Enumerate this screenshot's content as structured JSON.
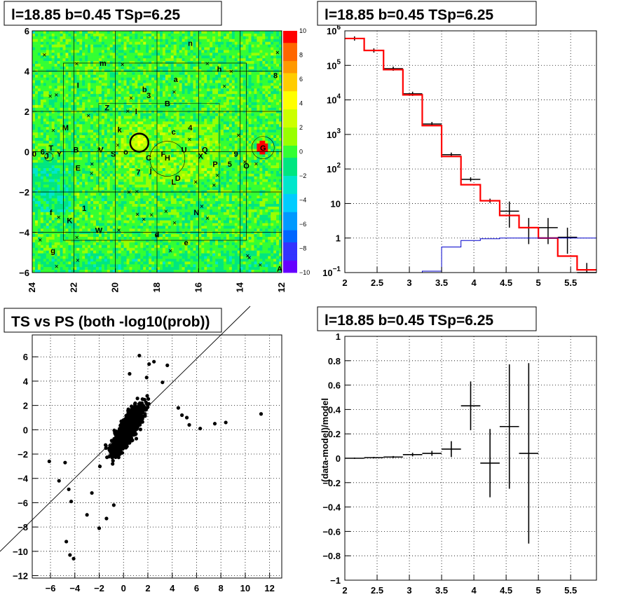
{
  "chart_data": [
    {
      "type": "heatmap",
      "title": "l=18.85 b=0.45 TSp=6.25",
      "xlim": [
        24,
        12
      ],
      "ylim": [
        -6,
        6
      ],
      "x_ticks": [
        "24",
        "22",
        "20",
        "18",
        "16",
        "14",
        "12"
      ],
      "y_ticks": [
        "−6",
        "−4",
        "−2",
        "0",
        "2",
        "4",
        "6"
      ],
      "colorbar_ticks": [
        "10",
        "8",
        "6",
        "4",
        "2",
        "0",
        "−2",
        "−4",
        "−6",
        "−8",
        "−10"
      ],
      "source_labels": [
        {
          "t": "n",
          "x": 16.4,
          "y": 5.4
        },
        {
          "t": "m",
          "x": 20.6,
          "y": 4.4
        },
        {
          "t": "h",
          "x": 15.0,
          "y": 4.1
        },
        {
          "t": "8",
          "x": 12.3,
          "y": 3.8
        },
        {
          "t": "a",
          "x": 17.1,
          "y": 3.6
        },
        {
          "t": "I",
          "x": 21.8,
          "y": 3.3
        },
        {
          "t": "b",
          "x": 18.6,
          "y": 3.1
        },
        {
          "t": "3",
          "x": 18.4,
          "y": 2.8
        },
        {
          "t": "B",
          "x": 17.5,
          "y": 2.4
        },
        {
          "t": "Z",
          "x": 20.4,
          "y": 2.2
        },
        {
          "t": "l",
          "x": 19.0,
          "y": 2.0
        },
        {
          "t": "M",
          "x": 22.4,
          "y": 1.2
        },
        {
          "t": "4",
          "x": 16.4,
          "y": 1.2
        },
        {
          "t": "c",
          "x": 17.2,
          "y": 1.0
        },
        {
          "t": "k",
          "x": 19.8,
          "y": 1.1
        },
        {
          "t": "T",
          "x": 23.1,
          "y": 0.2
        },
        {
          "t": "B",
          "x": 21.9,
          "y": 0.1
        },
        {
          "t": "V",
          "x": 20.7,
          "y": 0.1
        },
        {
          "t": "S",
          "x": 20.1,
          "y": -0.1
        },
        {
          "t": "o",
          "x": 19.5,
          "y": 0.0
        },
        {
          "t": "F",
          "x": 17.7,
          "y": -0.1
        },
        {
          "t": "U",
          "x": 16.7,
          "y": 0.1
        },
        {
          "t": "X",
          "x": 15.9,
          "y": -0.2
        },
        {
          "t": "Q",
          "x": 15.7,
          "y": 0.1
        },
        {
          "t": "9",
          "x": 14.2,
          "y": -0.1
        },
        {
          "t": "G",
          "x": 12.9,
          "y": 0.2
        },
        {
          "t": "0",
          "x": 23.9,
          "y": -0.1
        },
        {
          "t": "6",
          "x": 23.5,
          "y": 0.0
        },
        {
          "t": "J",
          "x": 23.3,
          "y": -0.2
        },
        {
          "t": "Y",
          "x": 22.7,
          "y": -0.1
        },
        {
          "t": "C",
          "x": 18.4,
          "y": -0.3
        },
        {
          "t": "H",
          "x": 17.5,
          "y": -0.3
        },
        {
          "t": "P",
          "x": 15.2,
          "y": -0.6
        },
        {
          "t": "5",
          "x": 14.5,
          "y": -0.6
        },
        {
          "t": "O",
          "x": 13.7,
          "y": -0.7
        },
        {
          "t": "E",
          "x": 21.8,
          "y": -0.8
        },
        {
          "t": "j",
          "x": 18.3,
          "y": -0.9
        },
        {
          "t": "7",
          "x": 18.9,
          "y": -1.0
        },
        {
          "t": "D",
          "x": 17.0,
          "y": -1.3
        },
        {
          "t": "L",
          "x": 17.2,
          "y": -1.5
        },
        {
          "t": "1",
          "x": 21.5,
          "y": -2.8
        },
        {
          "t": "f",
          "x": 23.1,
          "y": -3.0
        },
        {
          "t": "N",
          "x": 16.1,
          "y": -3.0
        },
        {
          "t": "K",
          "x": 22.2,
          "y": -3.4
        },
        {
          "t": "W",
          "x": 20.8,
          "y": -3.9
        },
        {
          "t": "d",
          "x": 18.0,
          "y": -4.1
        },
        {
          "t": "e",
          "x": 16.6,
          "y": -4.5
        },
        {
          "t": "g",
          "x": 23.0,
          "y": -4.9
        },
        {
          "t": "A",
          "x": 12.1,
          "y": -5.8
        }
      ]
    },
    {
      "type": "line",
      "title": "l=18.85 b=0.45 TSp=6.25",
      "yscale": "log",
      "xlim": [
        2,
        5.9
      ],
      "ylim": [
        0.1,
        1000000
      ],
      "x_ticks": [
        "2",
        "2.5",
        "3",
        "3.5",
        "4",
        "4.5",
        "5",
        "5.5"
      ],
      "y_ticks": [
        "10^-1",
        "1",
        "10",
        "10^2",
        "10^3",
        "10^4",
        "10^5",
        "10^6"
      ],
      "bin_edges": [
        2.0,
        2.3,
        2.6,
        2.9,
        3.2,
        3.5,
        3.8,
        4.1,
        4.4,
        4.7,
        5.0,
        5.3,
        5.6,
        5.9
      ],
      "series": [
        {
          "color": "#000000",
          "values": [
            600000,
            270000,
            80000,
            15000,
            2000,
            260,
            50,
            12,
            6,
            2,
            2,
            1.05,
            0.1
          ]
        },
        {
          "color": "#ff0000",
          "values": [
            600000,
            270000,
            75000,
            14000,
            1800,
            230,
            35,
            12,
            4.5,
            2,
            1,
            0.3,
            0.12
          ]
        },
        {
          "color": "#0000cc",
          "values": [
            0,
            0,
            0,
            0,
            0.11,
            0.55,
            0.85,
            0.95,
            1,
            1,
            1,
            1,
            1
          ]
        }
      ]
    },
    {
      "type": "scatter",
      "title": "TS vs PS (both -log10(prob))",
      "xlim": [
        -7.5,
        13
      ],
      "ylim": [
        -12.2,
        7.8
      ],
      "x_ticks": [
        "−6",
        "−4",
        "−2",
        "0",
        "2",
        "4",
        "6",
        "8",
        "10",
        "12"
      ],
      "y_ticks": [
        "−12",
        "−10",
        "−8",
        "−6",
        "−4",
        "−2",
        "0",
        "2",
        "4",
        "6"
      ],
      "outliers": [
        [
          11.3,
          1.3
        ],
        [
          8.4,
          0.6
        ],
        [
          7.5,
          0.5
        ],
        [
          6.3,
          0.1
        ],
        [
          5.4,
          0.4
        ],
        [
          5.2,
          1.0
        ],
        [
          4.8,
          1.2
        ],
        [
          4.5,
          1.8
        ],
        [
          3.6,
          5.3
        ],
        [
          2.5,
          5.6
        ],
        [
          2.1,
          5.4
        ],
        [
          1.3,
          6.1
        ],
        [
          -4.1,
          -10.6
        ],
        [
          -4.4,
          -10.3
        ],
        [
          -4.7,
          -9.2
        ],
        [
          -2.0,
          -8.1
        ],
        [
          -3.0,
          -7.0
        ],
        [
          -4.3,
          -5.9
        ],
        [
          -4.5,
          -4.9
        ],
        [
          -5.3,
          -4.2
        ],
        [
          -6.1,
          -2.6
        ],
        [
          -4.8,
          -2.7
        ],
        [
          -1.4,
          -7.3
        ],
        [
          -0.8,
          -6.2
        ],
        [
          -2.6,
          -5.2
        ],
        [
          0.5,
          4.6
        ],
        [
          1.9,
          4.3
        ],
        [
          3.2,
          3.9
        ]
      ]
    },
    {
      "type": "scatter",
      "title": "l=18.85 b=0.45 TSp=6.25",
      "ylabel": "(data-model)/model",
      "xlim": [
        2,
        5.9
      ],
      "ylim": [
        -1,
        1
      ],
      "x_ticks": [
        "2",
        "2.5",
        "3",
        "3.5",
        "4",
        "4.5",
        "5",
        "5.5"
      ],
      "y_ticks": [
        "−1",
        "−0.8",
        "−0.6",
        "−0.4",
        "−0.2",
        "0",
        "0.2",
        "0.4",
        "0.6",
        "0.8",
        "1"
      ],
      "points": [
        {
          "x": 2.15,
          "y": 0.0,
          "xerr": 0.15,
          "yerr": 0.005
        },
        {
          "x": 2.45,
          "y": 0.005,
          "xerr": 0.15,
          "yerr": 0.006
        },
        {
          "x": 2.75,
          "y": 0.01,
          "xerr": 0.15,
          "yerr": 0.008
        },
        {
          "x": 3.05,
          "y": 0.03,
          "xerr": 0.15,
          "yerr": 0.015
        },
        {
          "x": 3.35,
          "y": 0.04,
          "xerr": 0.15,
          "yerr": 0.02
        },
        {
          "x": 3.65,
          "y": 0.075,
          "xerr": 0.15,
          "yerr": 0.065
        },
        {
          "x": 3.95,
          "y": 0.43,
          "xerr": 0.15,
          "yerr": 0.2
        },
        {
          "x": 4.25,
          "y": -0.04,
          "xerr": 0.15,
          "yerr": 0.28
        },
        {
          "x": 4.55,
          "y": 0.26,
          "xerr": 0.15,
          "yerr": 0.51
        },
        {
          "x": 4.85,
          "y": 0.04,
          "xerr": 0.15,
          "yerr": 0.74
        }
      ]
    }
  ]
}
